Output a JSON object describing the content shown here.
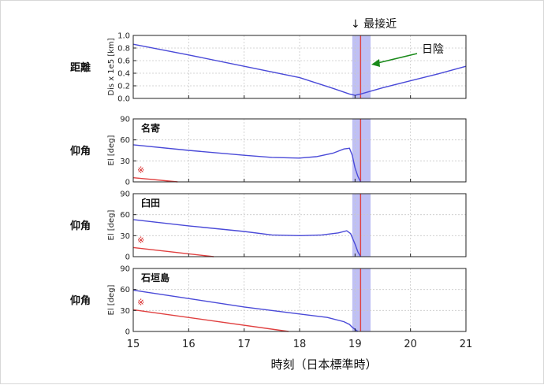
{
  "chart_data": [
    {
      "type": "line",
      "row_label": "距離",
      "ylabel": "Dis x 1e5 [km]",
      "xlim": [
        15,
        21
      ],
      "ylim": [
        0.0,
        1.0
      ],
      "yticks": [
        "0.0",
        "0.2",
        "0.4",
        "0.6",
        "0.8",
        "1.0"
      ],
      "grid": true,
      "series": [
        {
          "color": "#4a4ad8",
          "x": [
            15,
            16,
            17,
            18,
            18.6,
            18.9,
            19.0,
            19.1,
            19.5,
            20,
            20.5,
            21
          ],
          "y": [
            0.86,
            0.69,
            0.51,
            0.33,
            0.16,
            0.07,
            0.05,
            0.07,
            0.17,
            0.28,
            0.39,
            0.51
          ]
        }
      ]
    },
    {
      "type": "line",
      "row_label": "仰角",
      "ylabel": "El [deg]",
      "site_label": "名寄",
      "marker": "※",
      "xlim": [
        15,
        21
      ],
      "ylim": [
        0,
        90
      ],
      "yticks": [
        "0",
        "30",
        "60",
        "90"
      ],
      "grid": true,
      "series": [
        {
          "color": "#4a4ad8",
          "x": [
            15,
            16,
            17,
            17.5,
            18,
            18.3,
            18.6,
            18.8,
            18.9,
            18.95,
            19.0,
            19.05,
            19.1
          ],
          "y": [
            53,
            45,
            38,
            35,
            34,
            36,
            41,
            47,
            48,
            38,
            20,
            8,
            0
          ]
        },
        {
          "color": "#e04040",
          "x": [
            15,
            15.8
          ],
          "y": [
            6,
            0
          ]
        }
      ]
    },
    {
      "type": "line",
      "row_label": "仰角",
      "ylabel": "El [deg]",
      "site_label": "臼田",
      "marker": "※",
      "xlim": [
        15,
        21
      ],
      "ylim": [
        0,
        90
      ],
      "yticks": [
        "0",
        "30",
        "60",
        "90"
      ],
      "grid": true,
      "series": [
        {
          "color": "#4a4ad8",
          "x": [
            15,
            16,
            17,
            17.5,
            18,
            18.4,
            18.7,
            18.85,
            18.92,
            19.0,
            19.05,
            19.1
          ],
          "y": [
            53,
            44,
            36,
            31,
            30,
            31,
            34,
            37,
            33,
            18,
            7,
            0
          ]
        },
        {
          "color": "#e04040",
          "x": [
            15,
            16.45
          ],
          "y": [
            13,
            0
          ]
        }
      ]
    },
    {
      "type": "line",
      "row_label": "仰角",
      "ylabel": "El [deg]",
      "site_label": "石垣島",
      "marker": "※",
      "xlim": [
        15,
        21
      ],
      "ylim": [
        0,
        90
      ],
      "yticks": [
        "0",
        "30",
        "60",
        "90"
      ],
      "xticks": [
        "15",
        "16",
        "17",
        "18",
        "19",
        "20",
        "21"
      ],
      "xlabel": "時刻（日本標準時）",
      "grid": true,
      "series": [
        {
          "color": "#4a4ad8",
          "x": [
            15,
            16,
            17,
            18,
            18.5,
            18.8,
            18.9,
            18.95,
            19.0,
            19.05
          ],
          "y": [
            59,
            47,
            35,
            25,
            20,
            14,
            10,
            6,
            3,
            0
          ]
        },
        {
          "color": "#e04040",
          "x": [
            15,
            17.8
          ],
          "y": [
            31,
            0
          ]
        }
      ]
    }
  ],
  "annotations": {
    "closest_approach": "↓ 最接近",
    "eclipse": "日陰"
  },
  "colors": {
    "eclipse_band": "#bfc0f4",
    "closest_line": "#e04040",
    "distance_line": "#4a4ad8",
    "arrow": "#1a8a1a"
  }
}
